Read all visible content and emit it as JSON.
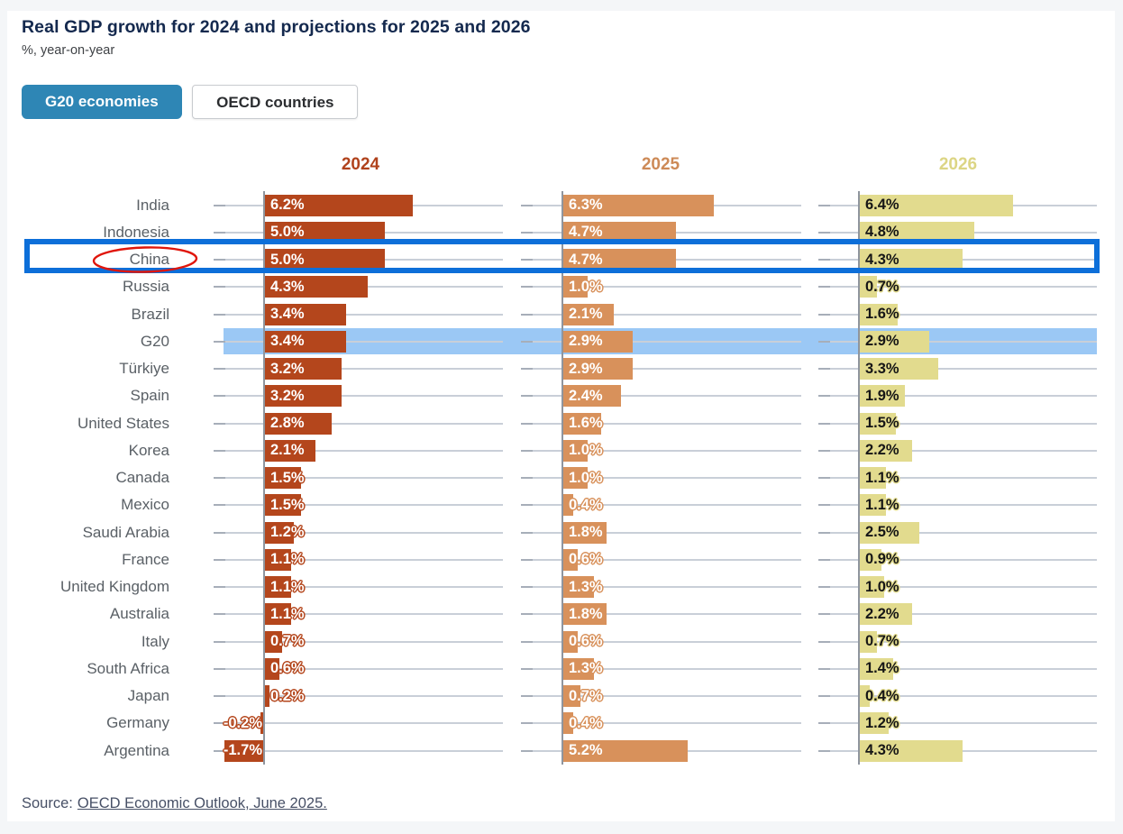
{
  "header": {
    "title": "Real GDP growth for 2024 and projections for 2025 and 2026",
    "subtitle": "%, year-on-year"
  },
  "tabs": [
    {
      "label": "G20 economies",
      "active": true,
      "active_bg_color": "#2e86b5"
    },
    {
      "label": "OECD countries",
      "active": false
    }
  ],
  "chart_data": {
    "type": "bar",
    "orientation": "horizontal",
    "unit": "%",
    "categories": [
      "India",
      "Indonesia",
      "China",
      "Russia",
      "Brazil",
      "G20",
      "Türkiye",
      "Spain",
      "United States",
      "Korea",
      "Canada",
      "Mexico",
      "Saudi Arabia",
      "France",
      "United Kingdom",
      "Australia",
      "Italy",
      "South Africa",
      "Japan",
      "Germany",
      "Argentina"
    ],
    "series": [
      {
        "name": "2024",
        "color": "#b4461c",
        "header_color": "#b0421c",
        "value_label_color": "#ffffff",
        "values": [
          6.2,
          5.0,
          5.0,
          4.3,
          3.4,
          3.4,
          3.2,
          3.2,
          2.8,
          2.1,
          1.5,
          1.5,
          1.2,
          1.1,
          1.1,
          1.1,
          0.7,
          0.6,
          0.2,
          -0.2,
          -1.7
        ]
      },
      {
        "name": "2025",
        "color": "#d8915b",
        "header_color": "#cd8a57",
        "value_label_color": "#ffffff",
        "values": [
          6.3,
          4.7,
          4.7,
          1.0,
          2.1,
          2.9,
          2.9,
          2.4,
          1.6,
          1.0,
          1.0,
          0.4,
          1.8,
          0.6,
          1.3,
          1.8,
          0.6,
          1.3,
          0.7,
          0.4,
          5.2
        ]
      },
      {
        "name": "2026",
        "color": "#e2db8e",
        "header_color": "#dcd584",
        "value_label_color": "#161616",
        "values": [
          6.4,
          4.8,
          4.3,
          0.7,
          1.6,
          2.9,
          3.3,
          1.9,
          1.5,
          2.2,
          1.1,
          1.1,
          2.5,
          0.9,
          1.0,
          2.2,
          0.7,
          1.4,
          0.4,
          1.2,
          4.3
        ]
      }
    ],
    "annotations": {
      "highlight_band_row": "G20",
      "highlight_band_color": "#9bc8f5",
      "highlight_box_row": "China",
      "highlight_box_color": "#0d6fd9",
      "circled_label": "China",
      "circle_color": "#e0150a"
    },
    "grid": true,
    "legend_position": "column-headers"
  },
  "source": {
    "prefix": "Source:",
    "link_text": "OECD Economic Outlook, June 2025."
  }
}
